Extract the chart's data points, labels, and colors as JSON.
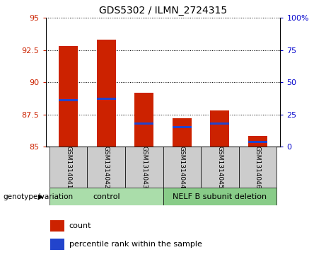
{
  "title": "GDS5302 / ILMN_2724315",
  "samples": [
    "GSM1314041",
    "GSM1314042",
    "GSM1314043",
    "GSM1314044",
    "GSM1314045",
    "GSM1314046"
  ],
  "bar_bottoms": [
    85,
    85,
    85,
    85,
    85,
    85
  ],
  "bar_tops": [
    92.8,
    93.3,
    89.2,
    87.2,
    87.8,
    85.8
  ],
  "blue_marks": [
    88.6,
    88.7,
    86.8,
    86.5,
    86.8,
    85.35
  ],
  "ylim": [
    85,
    95
  ],
  "yticks_left": [
    85,
    87.5,
    90,
    92.5,
    95
  ],
  "yright_labels": [
    "0",
    "25",
    "50",
    "75",
    "100%"
  ],
  "bar_color": "#cc2200",
  "blue_color": "#2244cc",
  "bar_width": 0.5,
  "legend_count": "count",
  "legend_pct": "percentile rank within the sample",
  "plot_bg": "#ffffff",
  "tick_label_color_left": "#cc2200",
  "tick_label_color_right": "#0000cc",
  "label_bg": "#cccccc",
  "ctrl_color": "#aaddaa",
  "nelf_color": "#88cc88"
}
